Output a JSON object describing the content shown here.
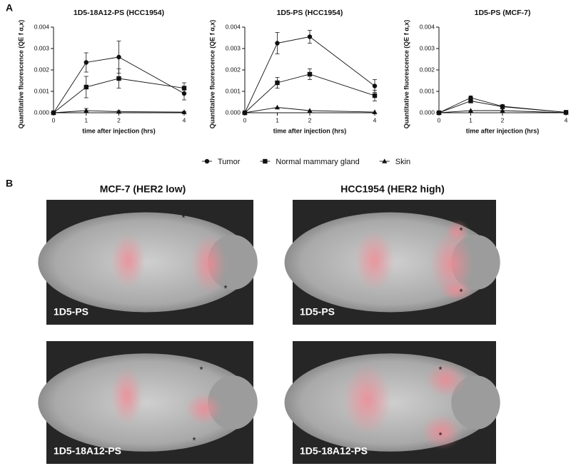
{
  "panel_a": {
    "label": "A"
  },
  "chart_data": [
    {
      "type": "line",
      "title": "1D5-18A12-PS (HCC1954)",
      "x_label": "time after injection (hrs)",
      "y_label": "Quantitative fluorescence (QE f α,x)",
      "x": [
        0,
        1,
        2,
        4
      ],
      "xlim": [
        0,
        4
      ],
      "xticks": [
        0,
        1,
        2,
        4
      ],
      "ylim": [
        0,
        0.004
      ],
      "yticks": [
        {
          "value": 0,
          "label": "0.000"
        },
        {
          "value": 0.001,
          "label": "0.001"
        },
        {
          "value": 0.002,
          "label": "0.002"
        },
        {
          "value": 0.003,
          "label": "0.003"
        },
        {
          "value": 0.004,
          "label": "0.004"
        }
      ],
      "series": [
        {
          "name": "Tumor",
          "marker": "circle",
          "color": "#111111",
          "values": [
            0,
            0.00235,
            0.0026,
            0.0009
          ],
          "errors": [
            0,
            0.00045,
            0.00075,
            0.0003
          ]
        },
        {
          "name": "Normal mammary gland",
          "marker": "square",
          "color": "#111111",
          "values": [
            0,
            0.0012,
            0.0016,
            0.00115
          ],
          "errors": [
            0,
            0.0005,
            0.00045,
            0.00025
          ]
        },
        {
          "name": "Skin",
          "marker": "triangle",
          "color": "#111111",
          "values": [
            0,
            0.0001,
            5e-05,
            3e-05
          ],
          "errors": [
            0,
            0.0001,
            5e-05,
            3e-05
          ]
        }
      ]
    },
    {
      "type": "line",
      "title": "1D5-PS (HCC1954)",
      "x_label": "time after injection (hrs)",
      "y_label": "Quantitative fluorescence (QE f α,x)",
      "x": [
        0,
        1,
        2,
        4
      ],
      "xlim": [
        0,
        4
      ],
      "xticks": [
        0,
        1,
        2,
        4
      ],
      "ylim": [
        0,
        0.004
      ],
      "yticks": [
        {
          "value": 0,
          "label": "0.000"
        },
        {
          "value": 0.001,
          "label": "0.001"
        },
        {
          "value": 0.002,
          "label": "0.002"
        },
        {
          "value": 0.003,
          "label": "0.003"
        },
        {
          "value": 0.004,
          "label": "0.004"
        }
      ],
      "series": [
        {
          "marker": "circle",
          "color": "#111111",
          "values": [
            0,
            0.00325,
            0.00355,
            0.00125
          ],
          "errors": [
            0,
            0.0005,
            0.0003,
            0.0003
          ]
        },
        {
          "marker": "square",
          "color": "#111111",
          "values": [
            0,
            0.0014,
            0.0018,
            0.0008
          ],
          "errors": [
            0,
            0.00025,
            0.00025,
            0.00025
          ]
        },
        {
          "marker": "triangle",
          "color": "#111111",
          "values": [
            0,
            0.00025,
            0.0001,
            3e-05
          ],
          "errors": [
            0,
            0,
            0,
            0
          ]
        }
      ]
    },
    {
      "type": "line",
      "title": "1D5-PS (MCF-7)",
      "x_label": "time after injection (hrs)",
      "y_label": "Quantitative fluorescence (QE f α,x)",
      "x": [
        0,
        1,
        2,
        4
      ],
      "xlim": [
        0,
        4
      ],
      "xticks": [
        0,
        1,
        2,
        4
      ],
      "ylim": [
        0,
        0.004
      ],
      "yticks": [
        {
          "value": 0,
          "label": "0.000"
        },
        {
          "value": 0.001,
          "label": "0.001"
        },
        {
          "value": 0.002,
          "label": "0.002"
        },
        {
          "value": 0.003,
          "label": "0.003"
        },
        {
          "value": 0.004,
          "label": "0.004"
        }
      ],
      "series": [
        {
          "marker": "circle",
          "color": "#111111",
          "values": [
            0,
            0.0007,
            0.0003,
            2e-05
          ],
          "errors": [
            0,
            8e-05,
            4e-05,
            0
          ]
        },
        {
          "marker": "square",
          "color": "#111111",
          "values": [
            0,
            0.00055,
            0.00028,
            2e-05
          ],
          "errors": [
            0,
            8e-05,
            4e-05,
            0
          ]
        },
        {
          "marker": "triangle",
          "color": "#111111",
          "values": [
            0,
            0.0001,
            0.0001,
            0
          ],
          "errors": [
            0,
            0,
            0,
            0
          ]
        }
      ]
    }
  ],
  "panel_b": {
    "label": "B",
    "columns": [
      "MCF-7 (HER2 low)",
      "HCC1954 (HER2 high)"
    ],
    "images": [
      {
        "label": "1D5-PS",
        "markers": [
          "*",
          "*"
        ]
      },
      {
        "label": "1D5-PS",
        "markers": [
          "*",
          "*"
        ]
      },
      {
        "label": "1D5-18A12-PS",
        "markers": [
          "*",
          "*"
        ]
      },
      {
        "label": "1D5-18A12-PS",
        "markers": [
          "*",
          "*"
        ]
      }
    ]
  }
}
